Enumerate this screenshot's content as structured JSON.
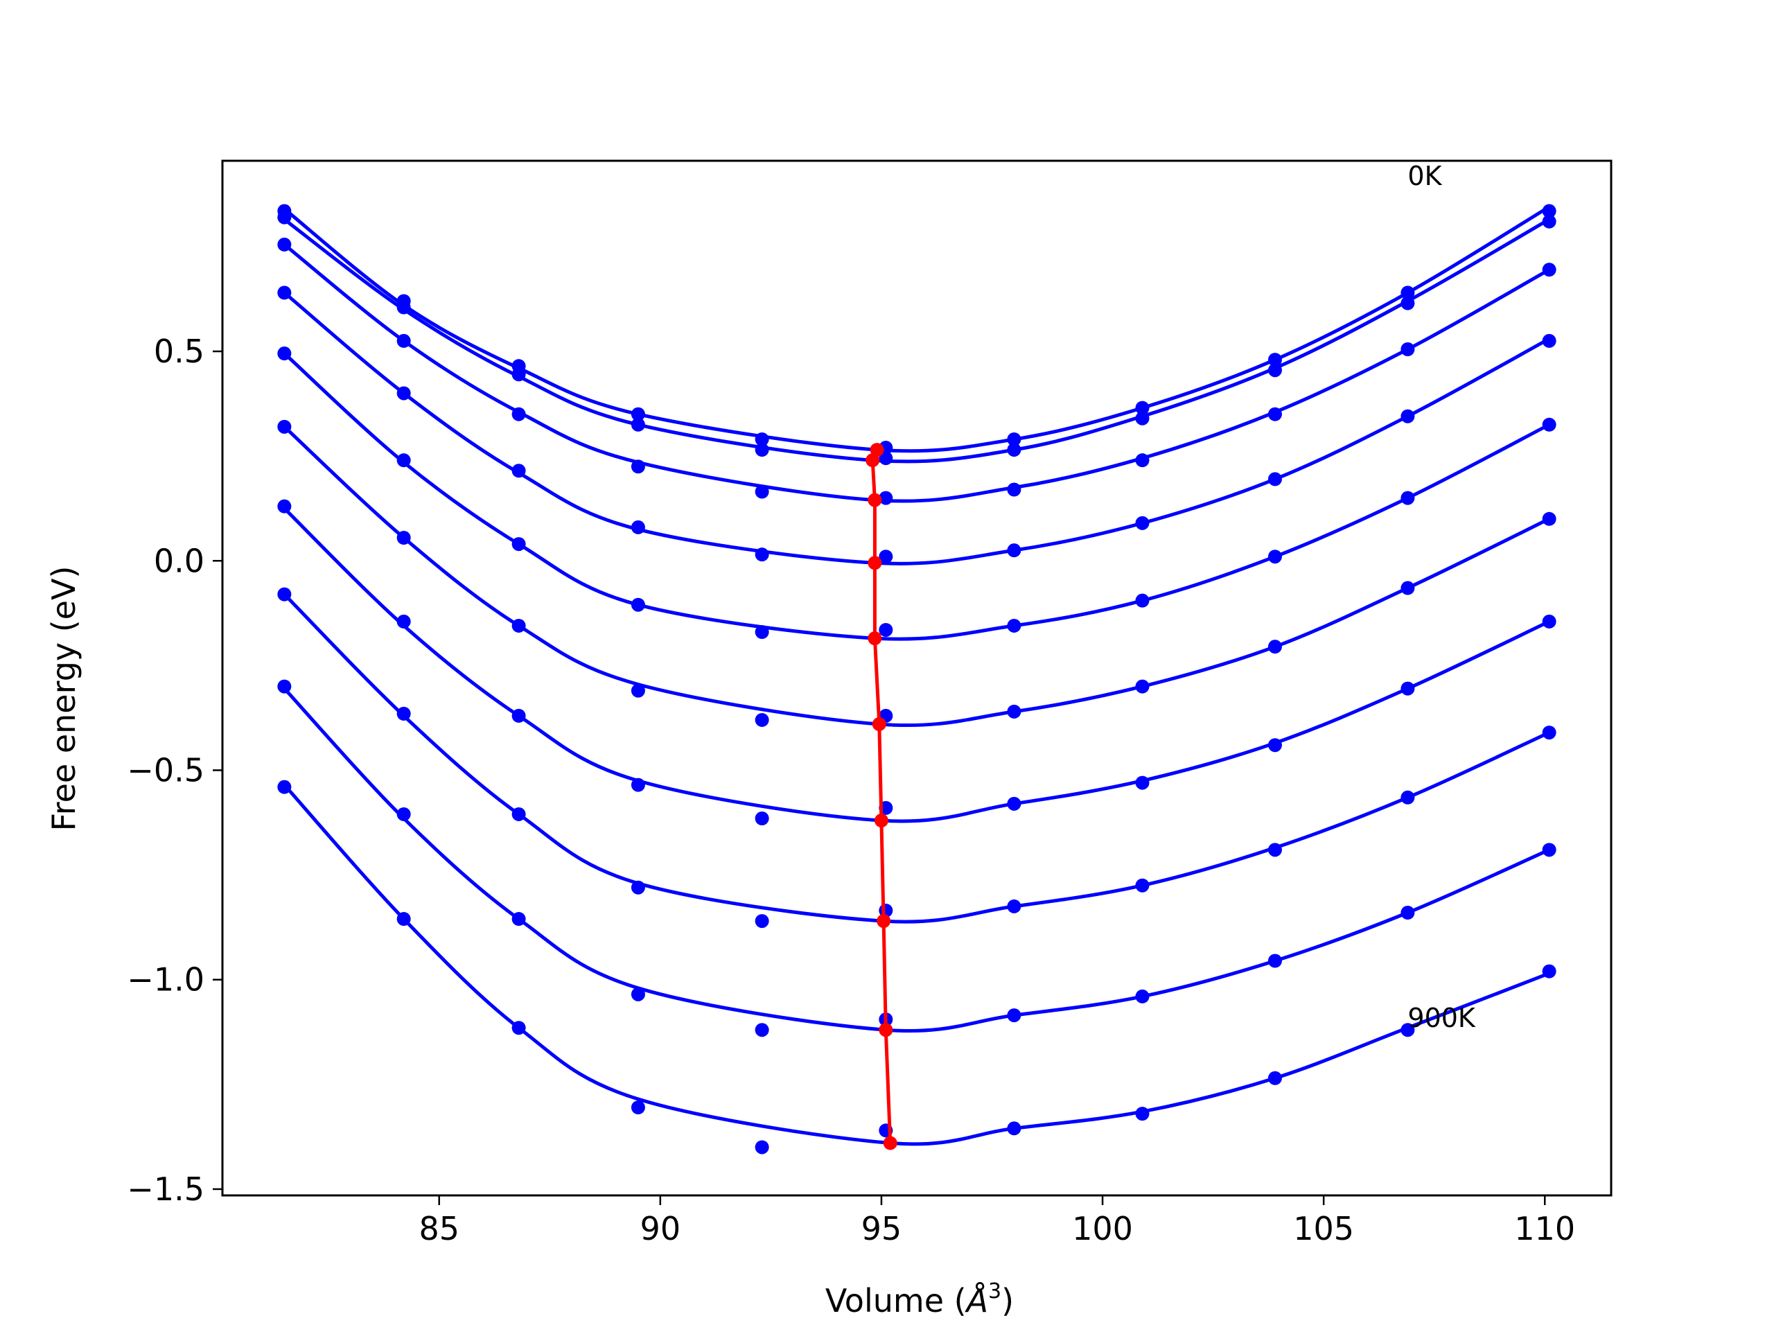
{
  "colors": {
    "curves": "#0000ff",
    "minima": "#ff0000",
    "axes": "#000000",
    "background": "#ffffff"
  },
  "chart_data": {
    "type": "line",
    "title": "",
    "xlabel": "Volume (Å³)",
    "xlabel_base": "Volume (",
    "xlabel_symbol": "Å",
    "xlabel_power": "3",
    "xlabel_close": ")",
    "ylabel": "Free energy (eV)",
    "xlim": [
      80.1,
      111.5
    ],
    "ylim": [
      -1.515,
      0.955
    ],
    "xticks": [
      85,
      90,
      95,
      100,
      105,
      110
    ],
    "yticks": [
      0.5,
      0.0,
      -0.5,
      -1.0,
      -1.5
    ],
    "xtick_labels": [
      "85",
      "90",
      "95",
      "100",
      "105",
      "110"
    ],
    "ytick_labels": [
      "0.5",
      "0.0",
      "−0.5",
      "−1.0",
      "−1.5"
    ],
    "grid": false,
    "annotations": [
      {
        "text": "0K",
        "x": 106.9,
        "y": 0.92
      },
      {
        "text": "900K",
        "x": 106.9,
        "y": -1.09
      }
    ],
    "volumes": [
      81.5,
      84.2,
      86.8,
      89.5,
      92.3,
      95.1,
      98.0,
      100.9,
      103.9,
      106.9,
      110.1
    ],
    "series": [
      {
        "values": [
          0.835,
          0.62,
          0.465,
          0.35,
          0.29,
          0.27,
          0.29,
          0.365,
          0.48,
          0.64,
          0.835
        ],
        "fit": {
          "min_x": 94.9,
          "min_y": 0.265,
          "left": [
            0.84,
            0.61,
            0.46,
            0.35
          ],
          "right": [
            0.29,
            0.365,
            0.48,
            0.64,
            0.845
          ]
        }
      },
      {
        "values": [
          0.82,
          0.605,
          0.445,
          0.325,
          0.265,
          0.245,
          0.265,
          0.34,
          0.455,
          0.615,
          0.81
        ],
        "fit": {
          "min_x": 94.8,
          "min_y": 0.24,
          "left": [
            0.815,
            0.6,
            0.44,
            0.325
          ],
          "right": [
            0.265,
            0.345,
            0.46,
            0.62,
            0.815
          ]
        }
      },
      {
        "values": [
          0.755,
          0.525,
          0.35,
          0.225,
          0.165,
          0.15,
          0.17,
          0.24,
          0.35,
          0.505,
          0.695
        ],
        "fit": {
          "min_x": 94.85,
          "min_y": 0.145,
          "left": [
            0.755,
            0.525,
            0.355,
            0.235
          ],
          "right": [
            0.175,
            0.245,
            0.355,
            0.505,
            0.695
          ]
        }
      },
      {
        "values": [
          0.64,
          0.4,
          0.215,
          0.08,
          0.015,
          0.01,
          0.025,
          0.09,
          0.195,
          0.345,
          0.525
        ],
        "fit": {
          "min_x": 94.85,
          "min_y": -0.005,
          "left": [
            0.64,
            0.4,
            0.21,
            0.075
          ],
          "right": [
            0.025,
            0.09,
            0.195,
            0.345,
            0.53
          ]
        }
      },
      {
        "values": [
          0.495,
          0.24,
          0.04,
          -0.105,
          -0.17,
          -0.165,
          -0.155,
          -0.095,
          0.01,
          0.15,
          0.325
        ],
        "fit": {
          "min_x": 94.85,
          "min_y": -0.185,
          "left": [
            0.495,
            0.235,
            0.04,
            -0.105
          ],
          "right": [
            -0.155,
            -0.095,
            0.01,
            0.15,
            0.325
          ]
        }
      },
      {
        "values": [
          0.32,
          0.055,
          -0.155,
          -0.31,
          -0.38,
          -0.37,
          -0.36,
          -0.3,
          -0.205,
          -0.065,
          0.1
        ],
        "fit": {
          "min_x": 94.95,
          "min_y": -0.39,
          "left": [
            0.32,
            0.055,
            -0.155,
            -0.295
          ],
          "right": [
            -0.36,
            -0.3,
            -0.205,
            -0.065,
            0.1
          ]
        }
      },
      {
        "values": [
          0.13,
          -0.145,
          -0.37,
          -0.535,
          -0.615,
          -0.59,
          -0.58,
          -0.53,
          -0.44,
          -0.305,
          -0.145
        ],
        "fit": {
          "min_x": 95.0,
          "min_y": -0.62,
          "left": [
            0.125,
            -0.155,
            -0.37,
            -0.525
          ],
          "right": [
            -0.58,
            -0.525,
            -0.435,
            -0.305,
            -0.145
          ]
        }
      },
      {
        "values": [
          -0.08,
          -0.365,
          -0.605,
          -0.78,
          -0.86,
          -0.835,
          -0.825,
          -0.775,
          -0.69,
          -0.565,
          -0.41
        ],
        "fit": {
          "min_x": 95.05,
          "min_y": -0.86,
          "left": [
            -0.08,
            -0.37,
            -0.605,
            -0.77
          ],
          "right": [
            -0.825,
            -0.775,
            -0.685,
            -0.565,
            -0.41
          ]
        }
      },
      {
        "values": [
          -0.3,
          -0.605,
          -0.855,
          -1.035,
          -1.12,
          -1.095,
          -1.085,
          -1.04,
          -0.955,
          -0.84,
          -0.69
        ],
        "fit": {
          "min_x": 95.1,
          "min_y": -1.12,
          "left": [
            -0.305,
            -0.615,
            -0.855,
            -1.02
          ],
          "right": [
            -1.085,
            -1.04,
            -0.955,
            -0.84,
            -0.69
          ]
        }
      },
      {
        "values": [
          -0.54,
          -0.855,
          -1.115,
          -1.305,
          -1.4,
          -1.36,
          -1.355,
          -1.32,
          -1.235,
          -1.12,
          -0.98
        ],
        "fit": {
          "min_x": 95.2,
          "min_y": -1.39,
          "left": [
            -0.535,
            -0.855,
            -1.115,
            -1.285
          ],
          "right": [
            -1.355,
            -1.315,
            -1.235,
            -1.115,
            -0.985
          ]
        }
      }
    ],
    "minima": {
      "x": [
        94.9,
        94.8,
        94.85,
        94.85,
        94.85,
        94.95,
        95.0,
        95.05,
        95.1,
        95.2
      ],
      "y": [
        0.265,
        0.24,
        0.145,
        -0.005,
        -0.185,
        -0.39,
        -0.62,
        -0.86,
        -1.12,
        -1.39
      ]
    }
  }
}
